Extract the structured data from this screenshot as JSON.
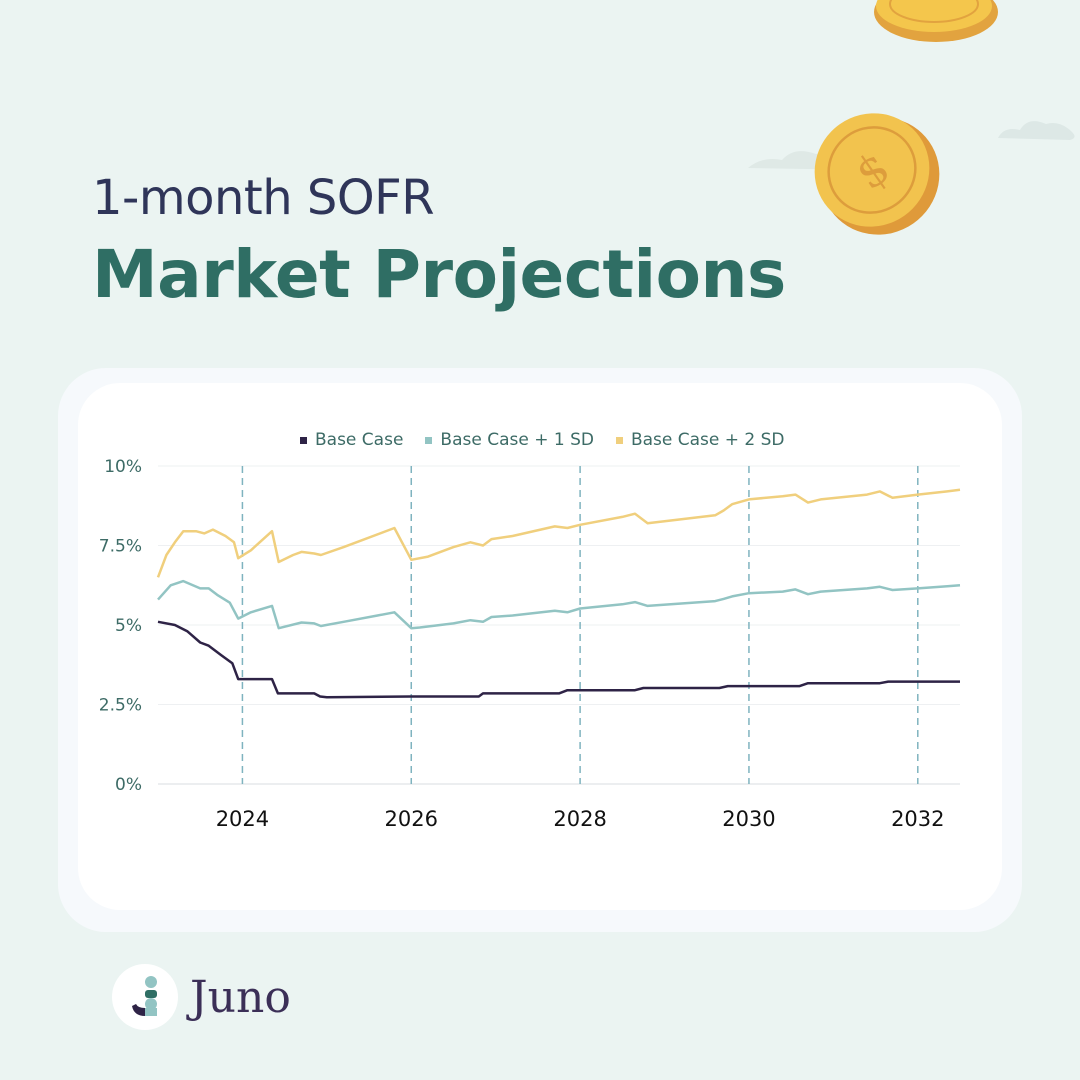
{
  "header": {
    "subtitle": "1-month SOFR",
    "title": "Market Projections"
  },
  "brand": {
    "name": "Juno",
    "colors": {
      "background": "#ebf4f2",
      "title": "#2f6e64",
      "subtitle": "#2f3559",
      "logo_text": "#3b2f57"
    }
  },
  "decorations": {
    "coin_icon": "dollar-coin-icon",
    "cloud_icon": "cloud-icon"
  },
  "chart_data": {
    "type": "line",
    "title": "",
    "xlabel": "",
    "ylabel": "",
    "xlim": [
      2023.0,
      2032.5
    ],
    "ylim": [
      0,
      10
    ],
    "yticks": [
      {
        "value": 0,
        "label": "0%"
      },
      {
        "value": 2.5,
        "label": "2.5%"
      },
      {
        "value": 5,
        "label": "5%"
      },
      {
        "value": 7.5,
        "label": "7.5%"
      },
      {
        "value": 10,
        "label": "10%"
      }
    ],
    "xticks": [
      {
        "value": 2024,
        "label": "2024"
      },
      {
        "value": 2026,
        "label": "2026"
      },
      {
        "value": 2028,
        "label": "2028"
      },
      {
        "value": 2030,
        "label": "2030"
      },
      {
        "value": 2032,
        "label": "2032"
      }
    ],
    "vlines": [
      2024,
      2026,
      2028,
      2030,
      2032
    ],
    "grid": true,
    "legend_position": "top",
    "series": [
      {
        "name": "Base Case",
        "color": "#2e2346",
        "points": [
          [
            2023.0,
            5.1
          ],
          [
            2023.2,
            5.0
          ],
          [
            2023.35,
            4.8
          ],
          [
            2023.5,
            4.45
          ],
          [
            2023.6,
            4.35
          ],
          [
            2023.75,
            4.05
          ],
          [
            2023.88,
            3.8
          ],
          [
            2023.95,
            3.3
          ],
          [
            2024.35,
            3.3
          ],
          [
            2024.42,
            2.85
          ],
          [
            2024.85,
            2.85
          ],
          [
            2024.92,
            2.75
          ],
          [
            2025.0,
            2.73
          ],
          [
            2026.0,
            2.75
          ],
          [
            2026.8,
            2.75
          ],
          [
            2026.85,
            2.85
          ],
          [
            2027.75,
            2.85
          ],
          [
            2027.85,
            2.95
          ],
          [
            2028.65,
            2.95
          ],
          [
            2028.75,
            3.02
          ],
          [
            2029.65,
            3.02
          ],
          [
            2029.75,
            3.08
          ],
          [
            2030.6,
            3.08
          ],
          [
            2030.7,
            3.17
          ],
          [
            2031.55,
            3.17
          ],
          [
            2031.65,
            3.22
          ],
          [
            2032.5,
            3.22
          ]
        ]
      },
      {
        "name": "Base Case + 1 SD",
        "color": "#92c4c3",
        "points": [
          [
            2023.0,
            5.8
          ],
          [
            2023.15,
            6.25
          ],
          [
            2023.3,
            6.38
          ],
          [
            2023.5,
            6.15
          ],
          [
            2023.6,
            6.15
          ],
          [
            2023.7,
            5.95
          ],
          [
            2023.85,
            5.7
          ],
          [
            2023.95,
            5.2
          ],
          [
            2024.1,
            5.4
          ],
          [
            2024.35,
            5.6
          ],
          [
            2024.43,
            4.9
          ],
          [
            2024.7,
            5.08
          ],
          [
            2024.85,
            5.05
          ],
          [
            2024.93,
            4.97
          ],
          [
            2025.2,
            5.1
          ],
          [
            2025.6,
            5.3
          ],
          [
            2025.8,
            5.4
          ],
          [
            2026.0,
            4.9
          ],
          [
            2026.1,
            4.92
          ],
          [
            2026.5,
            5.05
          ],
          [
            2026.7,
            5.15
          ],
          [
            2026.85,
            5.1
          ],
          [
            2026.95,
            5.25
          ],
          [
            2027.2,
            5.3
          ],
          [
            2027.7,
            5.45
          ],
          [
            2027.85,
            5.4
          ],
          [
            2028.0,
            5.52
          ],
          [
            2028.5,
            5.65
          ],
          [
            2028.65,
            5.72
          ],
          [
            2028.8,
            5.6
          ],
          [
            2029.6,
            5.75
          ],
          [
            2029.7,
            5.82
          ],
          [
            2029.8,
            5.9
          ],
          [
            2030.0,
            6.0
          ],
          [
            2030.4,
            6.05
          ],
          [
            2030.55,
            6.12
          ],
          [
            2030.7,
            5.97
          ],
          [
            2030.85,
            6.05
          ],
          [
            2031.4,
            6.15
          ],
          [
            2031.55,
            6.2
          ],
          [
            2031.7,
            6.1
          ],
          [
            2032.0,
            6.15
          ],
          [
            2032.35,
            6.22
          ],
          [
            2032.5,
            6.25
          ]
        ]
      },
      {
        "name": "Base Case + 2 SD",
        "color": "#f0cf7d",
        "points": [
          [
            2023.0,
            6.5
          ],
          [
            2023.1,
            7.2
          ],
          [
            2023.2,
            7.6
          ],
          [
            2023.3,
            7.95
          ],
          [
            2023.45,
            7.95
          ],
          [
            2023.55,
            7.88
          ],
          [
            2023.65,
            8.0
          ],
          [
            2023.8,
            7.8
          ],
          [
            2023.9,
            7.6
          ],
          [
            2023.95,
            7.1
          ],
          [
            2024.1,
            7.35
          ],
          [
            2024.35,
            7.95
          ],
          [
            2024.43,
            6.98
          ],
          [
            2024.6,
            7.2
          ],
          [
            2024.7,
            7.3
          ],
          [
            2024.85,
            7.25
          ],
          [
            2024.93,
            7.2
          ],
          [
            2025.2,
            7.45
          ],
          [
            2025.8,
            8.05
          ],
          [
            2026.0,
            7.05
          ],
          [
            2026.2,
            7.15
          ],
          [
            2026.5,
            7.45
          ],
          [
            2026.7,
            7.6
          ],
          [
            2026.85,
            7.5
          ],
          [
            2026.95,
            7.7
          ],
          [
            2027.2,
            7.8
          ],
          [
            2027.7,
            8.1
          ],
          [
            2027.85,
            8.05
          ],
          [
            2028.0,
            8.15
          ],
          [
            2028.5,
            8.4
          ],
          [
            2028.65,
            8.5
          ],
          [
            2028.8,
            8.2
          ],
          [
            2029.6,
            8.45
          ],
          [
            2029.7,
            8.6
          ],
          [
            2029.8,
            8.8
          ],
          [
            2030.0,
            8.95
          ],
          [
            2030.4,
            9.05
          ],
          [
            2030.55,
            9.1
          ],
          [
            2030.7,
            8.85
          ],
          [
            2030.85,
            8.95
          ],
          [
            2031.4,
            9.1
          ],
          [
            2031.55,
            9.2
          ],
          [
            2031.7,
            9.0
          ],
          [
            2032.0,
            9.1
          ],
          [
            2032.35,
            9.2
          ],
          [
            2032.5,
            9.25
          ]
        ]
      }
    ]
  }
}
